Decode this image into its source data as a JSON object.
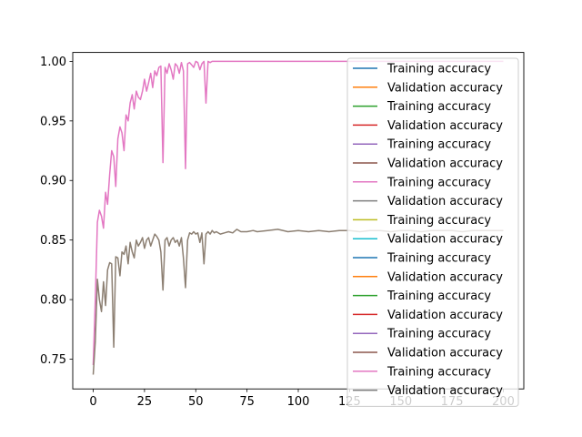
{
  "chart_data": {
    "type": "line",
    "title": "",
    "xlabel": "",
    "ylabel": "",
    "xlim": [
      -10,
      210
    ],
    "ylim": [
      0.725,
      1.0075
    ],
    "xticks": [
      0,
      25,
      50,
      75,
      100,
      125,
      150,
      175,
      200
    ],
    "xtick_labels": [
      "0",
      "25",
      "50",
      "75",
      "100",
      "125",
      "150",
      "175",
      "200"
    ],
    "yticks": [
      0.75,
      0.8,
      0.85,
      0.9,
      0.95,
      1.0
    ],
    "ytick_labels": [
      "0.75",
      "0.80",
      "0.85",
      "0.90",
      "0.95",
      "1.00"
    ],
    "grid": false,
    "legend_location": "upper-right",
    "legend_entries": [
      {
        "label": "Training accuracy",
        "color": "#1f77b4"
      },
      {
        "label": "Validation accuracy",
        "color": "#ff7f0e"
      },
      {
        "label": "Training accuracy",
        "color": "#2ca02c"
      },
      {
        "label": "Validation accuracy",
        "color": "#d62728"
      },
      {
        "label": "Training accuracy",
        "color": "#9467bd"
      },
      {
        "label": "Validation accuracy",
        "color": "#8c564b"
      },
      {
        "label": "Training accuracy",
        "color": "#e377c2"
      },
      {
        "label": "Validation accuracy",
        "color": "#7f7f7f"
      },
      {
        "label": "Training accuracy",
        "color": "#bcbd22"
      },
      {
        "label": "Validation accuracy",
        "color": "#17becf"
      },
      {
        "label": "Training accuracy",
        "color": "#1f77b4"
      },
      {
        "label": "Validation accuracy",
        "color": "#ff7f0e"
      },
      {
        "label": "Training accuracy",
        "color": "#2ca02c"
      },
      {
        "label": "Validation accuracy",
        "color": "#d62728"
      },
      {
        "label": "Training accuracy",
        "color": "#9467bd"
      },
      {
        "label": "Validation accuracy",
        "color": "#8c564b"
      },
      {
        "label": "Training accuracy",
        "color": "#e377c2"
      },
      {
        "label": "Validation accuracy",
        "color": "#7f7f7f"
      }
    ],
    "series": [
      {
        "name": "Training accuracy",
        "color": "#e377c2",
        "x": [
          0,
          1,
          2,
          3,
          4,
          5,
          6,
          7,
          8,
          9,
          10,
          11,
          12,
          13,
          14,
          15,
          16,
          17,
          18,
          19,
          20,
          21,
          22,
          23,
          24,
          25,
          26,
          27,
          28,
          29,
          30,
          31,
          32,
          33,
          34,
          35,
          36,
          37,
          38,
          39,
          40,
          41,
          42,
          43,
          44,
          45,
          46,
          47,
          48,
          49,
          50,
          51,
          52,
          53,
          54,
          55,
          56,
          57,
          58,
          59,
          60,
          62,
          65,
          70,
          80,
          90,
          100,
          110,
          120,
          130,
          140,
          150,
          160,
          170,
          180,
          190,
          200
        ],
        "y": [
          0.745,
          0.8,
          0.865,
          0.875,
          0.87,
          0.86,
          0.89,
          0.88,
          0.905,
          0.925,
          0.92,
          0.895,
          0.935,
          0.945,
          0.94,
          0.925,
          0.955,
          0.95,
          0.965,
          0.972,
          0.96,
          0.975,
          0.97,
          0.968,
          0.975,
          0.985,
          0.975,
          0.982,
          0.99,
          0.978,
          0.992,
          0.988,
          0.995,
          0.996,
          0.915,
          0.995,
          0.99,
          0.998,
          0.993,
          0.985,
          0.998,
          0.996,
          0.99,
          0.999,
          0.992,
          0.91,
          0.998,
          0.999,
          0.997,
          0.995,
          1.0,
          0.999,
          0.993,
          0.998,
          1.0,
          0.965,
          1.0,
          0.999,
          1.0,
          1.0,
          1.0,
          1.0,
          1.0,
          1.0,
          1.0,
          1.0,
          1.0,
          1.0,
          1.0,
          1.0,
          1.0,
          1.0,
          1.0,
          1.0,
          1.0,
          1.0,
          1.0
        ]
      },
      {
        "name": "Validation accuracy",
        "color": "#8c7f72",
        "x": [
          0,
          1,
          2,
          3,
          4,
          5,
          6,
          7,
          8,
          9,
          10,
          11,
          12,
          13,
          14,
          15,
          16,
          17,
          18,
          19,
          20,
          21,
          22,
          23,
          24,
          25,
          26,
          27,
          28,
          29,
          30,
          31,
          32,
          33,
          34,
          35,
          36,
          37,
          38,
          39,
          40,
          41,
          42,
          43,
          44,
          45,
          46,
          47,
          48,
          49,
          50,
          51,
          52,
          53,
          54,
          55,
          56,
          57,
          58,
          59,
          60,
          62,
          64,
          66,
          68,
          70,
          72,
          75,
          78,
          80,
          85,
          90,
          95,
          100,
          105,
          110,
          115,
          120,
          125,
          130,
          135,
          140,
          145,
          150,
          155,
          160,
          165,
          170,
          175,
          180,
          185,
          190,
          195,
          200
        ],
        "y": [
          0.737,
          0.765,
          0.817,
          0.8,
          0.79,
          0.815,
          0.795,
          0.825,
          0.831,
          0.83,
          0.76,
          0.836,
          0.835,
          0.82,
          0.84,
          0.838,
          0.845,
          0.83,
          0.848,
          0.84,
          0.835,
          0.85,
          0.845,
          0.848,
          0.852,
          0.843,
          0.85,
          0.852,
          0.845,
          0.85,
          0.855,
          0.853,
          0.85,
          0.84,
          0.808,
          0.85,
          0.852,
          0.845,
          0.85,
          0.852,
          0.848,
          0.85,
          0.845,
          0.852,
          0.835,
          0.81,
          0.85,
          0.856,
          0.855,
          0.857,
          0.855,
          0.856,
          0.848,
          0.856,
          0.83,
          0.855,
          0.857,
          0.855,
          0.858,
          0.856,
          0.857,
          0.855,
          0.856,
          0.857,
          0.856,
          0.859,
          0.857,
          0.857,
          0.858,
          0.857,
          0.858,
          0.859,
          0.857,
          0.858,
          0.857,
          0.858,
          0.857,
          0.858,
          0.858,
          0.857,
          0.858,
          0.858,
          0.857,
          0.858,
          0.858,
          0.857,
          0.858,
          0.858,
          0.858,
          0.857,
          0.858,
          0.858,
          0.858,
          0.858
        ]
      }
    ]
  }
}
